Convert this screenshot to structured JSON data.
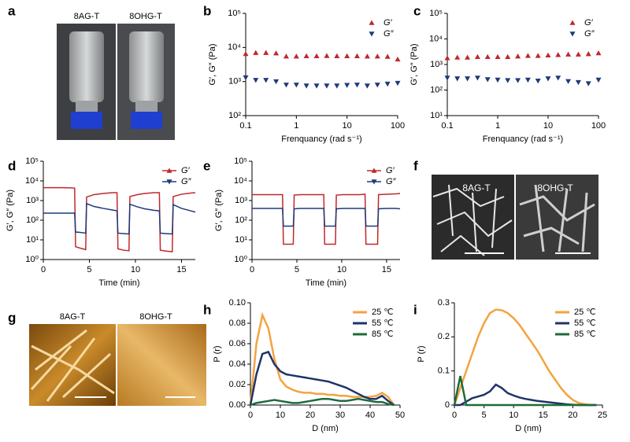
{
  "panel_labels": [
    "a",
    "b",
    "c",
    "d",
    "e",
    "f",
    "g",
    "h",
    "i"
  ],
  "images": [
    {
      "labels": [
        "8AG-T",
        "8OHG-T"
      ]
    },
    {
      "labels": [
        "8AG-T",
        "8OHG-T"
      ]
    },
    {
      "labels": [
        "8AG-T",
        "8OHG-T"
      ]
    }
  ],
  "chart_data": [
    {
      "type": "scatter",
      "xlabel": "Frenquancy (rad s⁻¹)",
      "ylabel": "G′, G″ (Pa)",
      "xscale": "log",
      "yscale": "log",
      "xlim": [
        0.1,
        100
      ],
      "ylim": [
        100,
        100000
      ],
      "xticks": [
        0.1,
        1,
        10,
        100
      ],
      "yticks": [
        {
          "value": 100,
          "label": "10²"
        },
        {
          "value": 1000,
          "label": "10³"
        },
        {
          "value": 10000,
          "label": "10⁴"
        },
        {
          "value": 100000,
          "label": "10⁵"
        }
      ],
      "legend": "upper right",
      "x": [
        0.1,
        0.158,
        0.251,
        0.398,
        0.631,
        1,
        1.58,
        2.51,
        3.98,
        6.31,
        10,
        15.8,
        25.1,
        39.8,
        63.1,
        100
      ],
      "series": [
        {
          "name": "G′",
          "color": "#c0282d",
          "marker": "triangle-up",
          "values": [
            6500,
            7000,
            7000,
            6800,
            5500,
            5500,
            5600,
            5600,
            5700,
            5600,
            5600,
            5600,
            5500,
            5500,
            5400,
            4500
          ]
        },
        {
          "name": "G″",
          "color": "#1f3a7a",
          "marker": "triangle-down",
          "values": [
            1300,
            1100,
            1100,
            1000,
            800,
            800,
            750,
            750,
            750,
            750,
            780,
            800,
            750,
            800,
            850,
            900
          ]
        }
      ]
    },
    {
      "type": "scatter",
      "xlabel": "Frenquancy (rad s⁻¹)",
      "ylabel": "G′, G″ (Pa)",
      "xscale": "log",
      "yscale": "log",
      "xlim": [
        0.1,
        100
      ],
      "ylim": [
        10,
        100000
      ],
      "xticks": [
        0.1,
        1,
        10,
        100
      ],
      "yticks": [
        {
          "value": 10,
          "label": "10¹"
        },
        {
          "value": 100,
          "label": "10²"
        },
        {
          "value": 1000,
          "label": "10³"
        },
        {
          "value": 10000,
          "label": "10⁴"
        },
        {
          "value": 100000,
          "label": "10⁵"
        }
      ],
      "legend": "upper right",
      "x": [
        0.1,
        0.158,
        0.251,
        0.398,
        0.631,
        1,
        1.58,
        2.51,
        3.98,
        6.31,
        10,
        15.8,
        25.1,
        39.8,
        63.1,
        100
      ],
      "series": [
        {
          "name": "G′",
          "color": "#c0282d",
          "marker": "triangle-up",
          "values": [
            1800,
            1900,
            1900,
            2000,
            2000,
            2000,
            2000,
            2100,
            2200,
            2200,
            2300,
            2400,
            2500,
            2500,
            2600,
            2800
          ]
        },
        {
          "name": "G″",
          "color": "#1f3a7a",
          "marker": "triangle-down",
          "values": [
            300,
            280,
            280,
            300,
            260,
            250,
            240,
            240,
            250,
            230,
            280,
            300,
            220,
            200,
            180,
            250
          ]
        }
      ]
    },
    {
      "type": "line",
      "xlabel": "Time (min)",
      "ylabel": "G′, G″ (Pa)",
      "yscale": "log",
      "xlim": [
        0,
        16.5
      ],
      "ylim": [
        1,
        100000
      ],
      "xticks": [
        0,
        5,
        10,
        15
      ],
      "yticks": [
        {
          "value": 1,
          "label": "10⁰"
        },
        {
          "value": 10,
          "label": "10¹"
        },
        {
          "value": 100,
          "label": "10²"
        },
        {
          "value": 1000,
          "label": "10³"
        },
        {
          "value": 10000,
          "label": "10⁴"
        },
        {
          "value": 100000,
          "label": "10⁵"
        }
      ],
      "legend": "upper right",
      "x": [
        0,
        1,
        2,
        3,
        3.4,
        3.5,
        4,
        4.6,
        4.7,
        5.5,
        6.5,
        7.5,
        8.0,
        8.1,
        8.7,
        9.3,
        9.4,
        10.2,
        11,
        12,
        12.6,
        12.7,
        13.3,
        14,
        14.1,
        15,
        16,
        16.5
      ],
      "series": [
        {
          "name": "G′",
          "color": "#c0282d",
          "marker": "triangle-up",
          "values": [
            4500,
            4500,
            4500,
            4400,
            4300,
            4.5,
            3.8,
            3.2,
            1500,
            2000,
            2300,
            2500,
            2500,
            3.5,
            3,
            2.8,
            1600,
            2000,
            2300,
            2500,
            2500,
            3,
            2.7,
            2.5,
            1600,
            2100,
            2400,
            2500
          ]
        },
        {
          "name": "G″",
          "color": "#1f3a7a",
          "marker": "triangle-down",
          "values": [
            230,
            230,
            230,
            230,
            230,
            25,
            24,
            22,
            700,
            500,
            400,
            330,
            300,
            22,
            21,
            20,
            650,
            480,
            380,
            320,
            300,
            22,
            21,
            20,
            620,
            400,
            300,
            260
          ]
        }
      ]
    },
    {
      "type": "line",
      "xlabel": "Time (min)",
      "ylabel": "G′, G″ (Pa)",
      "yscale": "log",
      "xlim": [
        0,
        16.5
      ],
      "ylim": [
        1,
        100000
      ],
      "xticks": [
        0,
        5,
        10,
        15
      ],
      "yticks": [
        {
          "value": 1,
          "label": "10⁰"
        },
        {
          "value": 10,
          "label": "10¹"
        },
        {
          "value": 100,
          "label": "10²"
        },
        {
          "value": 1000,
          "label": "10³"
        },
        {
          "value": 10000,
          "label": "10⁴"
        },
        {
          "value": 100000,
          "label": "10⁵"
        }
      ],
      "legend": "upper right",
      "x": [
        0,
        1,
        2,
        3,
        3.4,
        3.5,
        4,
        4.6,
        4.7,
        5.5,
        6.5,
        7.5,
        8.0,
        8.1,
        8.7,
        9.3,
        9.4,
        10.2,
        11,
        12,
        12.6,
        12.7,
        13.3,
        14,
        14.1,
        15,
        16,
        16.5
      ],
      "series": [
        {
          "name": "G′",
          "color": "#c0282d",
          "marker": "triangle-up",
          "values": [
            2000,
            2000,
            2000,
            2000,
            2000,
            6,
            6,
            6,
            1900,
            2000,
            2000,
            2000,
            2000,
            6,
            6,
            6,
            1900,
            2000,
            2000,
            2000,
            2100,
            6,
            6,
            6,
            2000,
            2100,
            2200,
            2300
          ]
        },
        {
          "name": "G″",
          "color": "#1f3a7a",
          "marker": "triangle-down",
          "values": [
            400,
            400,
            400,
            400,
            400,
            50,
            50,
            50,
            380,
            400,
            400,
            400,
            400,
            50,
            50,
            50,
            380,
            400,
            400,
            400,
            400,
            50,
            50,
            50,
            380,
            400,
            400,
            380
          ]
        }
      ]
    },
    {
      "type": "line",
      "xlabel": "D (nm)",
      "ylabel": "P (r)",
      "xlim": [
        0,
        50
      ],
      "ylim": [
        0,
        0.1
      ],
      "xticks": [
        0,
        10,
        20,
        30,
        40,
        50
      ],
      "yticks": [
        {
          "value": 0,
          "label": "0.00"
        },
        0.02,
        0.04,
        0.06,
        0.08,
        {
          "value": 0.1,
          "label": "0.10"
        }
      ],
      "legend": "upper right",
      "x": [
        0,
        2,
        4,
        6,
        8,
        10,
        12,
        14,
        16,
        18,
        20,
        22,
        24,
        26,
        28,
        30,
        32,
        34,
        36,
        38,
        40,
        42,
        44,
        46,
        48
      ],
      "series": [
        {
          "name": "25 ℃",
          "color": "#f4a340",
          "values": [
            0,
            0.06,
            0.088,
            0.075,
            0.045,
            0.025,
            0.018,
            0.015,
            0.013,
            0.012,
            0.012,
            0.011,
            0.011,
            0.01,
            0.01,
            0.009,
            0.009,
            0.008,
            0.008,
            0.008,
            0.008,
            0.009,
            0.012,
            0.008,
            0
          ]
        },
        {
          "name": "55 ℃",
          "color": "#1f3468",
          "values": [
            0,
            0.03,
            0.05,
            0.052,
            0.04,
            0.033,
            0.03,
            0.029,
            0.028,
            0.027,
            0.026,
            0.025,
            0.024,
            0.023,
            0.021,
            0.019,
            0.017,
            0.014,
            0.011,
            0.008,
            0.006,
            0.006,
            0.009,
            0.004,
            0
          ]
        },
        {
          "name": "85 ℃",
          "color": "#1e6b3c",
          "values": [
            0,
            0.002,
            0.003,
            0.004,
            0.005,
            0.004,
            0.003,
            0.002,
            0.002,
            0.003,
            0.004,
            0.005,
            0.006,
            0.006,
            0.005,
            0.004,
            0.004,
            0.005,
            0.006,
            0.005,
            0.004,
            0.003,
            0.003,
            0.001,
            0
          ]
        }
      ]
    },
    {
      "type": "line",
      "xlabel": "D (nm)",
      "ylabel": "P (r)",
      "xlim": [
        0,
        25
      ],
      "ylim": [
        0,
        0.3
      ],
      "xticks": [
        0,
        5,
        10,
        15,
        20,
        25
      ],
      "yticks": [
        0,
        0.1,
        0.2,
        0.3
      ],
      "legend": "upper right",
      "x": [
        0,
        1,
        2,
        3,
        4,
        5,
        6,
        7,
        8,
        9,
        10,
        11,
        12,
        13,
        14,
        15,
        16,
        17,
        18,
        19,
        20,
        21,
        22,
        23,
        24
      ],
      "series": [
        {
          "name": "25 ℃",
          "color": "#f4a340",
          "values": [
            0,
            0.05,
            0.1,
            0.15,
            0.2,
            0.24,
            0.27,
            0.28,
            0.278,
            0.27,
            0.255,
            0.235,
            0.21,
            0.185,
            0.16,
            0.13,
            0.1,
            0.075,
            0.05,
            0.03,
            0.015,
            0.006,
            0.002,
            0,
            0
          ]
        },
        {
          "name": "55 ℃",
          "color": "#1f3468",
          "values": [
            0,
            0,
            0.01,
            0.02,
            0.025,
            0.03,
            0.04,
            0.06,
            0.05,
            0.035,
            0.028,
            0.022,
            0.018,
            0.015,
            0.012,
            0.01,
            0.008,
            0.006,
            0.004,
            0.002,
            0.001,
            0,
            0,
            0,
            0
          ]
        },
        {
          "name": "85 ℃",
          "color": "#1e6b3c",
          "values": [
            0,
            0.085,
            0,
            0,
            0,
            0,
            0,
            0,
            0,
            0,
            0,
            0,
            0,
            0,
            0,
            0,
            0,
            0,
            0,
            0,
            0,
            0,
            0,
            0,
            0
          ]
        }
      ]
    }
  ]
}
